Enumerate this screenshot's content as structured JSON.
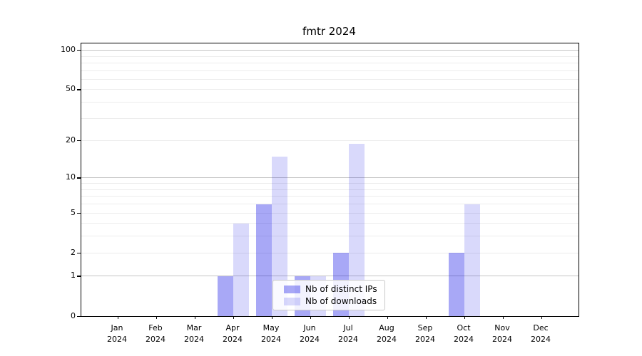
{
  "title": "fmtr 2024",
  "chart_data": {
    "type": "bar",
    "title": "fmtr 2024",
    "months": [
      "Jan",
      "Feb",
      "Mar",
      "Apr",
      "May",
      "Jun",
      "Jul",
      "Aug",
      "Sep",
      "Oct",
      "Nov",
      "Dec"
    ],
    "year": "2024",
    "series": [
      {
        "name": "Nb of distinct IPs",
        "color": "rgba(0,0,229,0.34)",
        "values": [
          0,
          0,
          0,
          1,
          6,
          1,
          2,
          0,
          0,
          2,
          0,
          0
        ]
      },
      {
        "name": "Nb of downloads",
        "color": "rgba(0,0,229,0.15)",
        "values": [
          0,
          0,
          0,
          4,
          15,
          1,
          19,
          0,
          0,
          6,
          0,
          0
        ]
      }
    ],
    "yscale": "log1p",
    "ytick_values": [
      0,
      1,
      2,
      5,
      10,
      20,
      50,
      100
    ],
    "minor_grid_values": [
      2,
      3,
      4,
      5,
      6,
      7,
      8,
      9,
      20,
      30,
      40,
      50,
      60,
      70,
      80,
      90
    ],
    "major_grid_values": [
      1,
      10,
      100
    ],
    "ylim": [
      0,
      113
    ],
    "grid": true,
    "legend_position": "lower center"
  },
  "colors": {
    "bar_distinct_ips": "rgba(0,0,229,0.34)",
    "bar_downloads": "rgba(0,0,229,0.15)",
    "major_grid": "#c3c3c3",
    "minor_grid": "#ececec",
    "axis": "#000000",
    "legend_border": "#c9c9c9"
  }
}
